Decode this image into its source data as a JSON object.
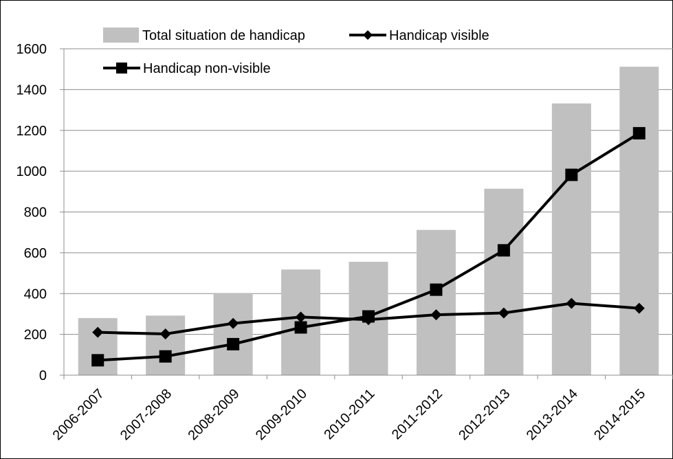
{
  "chart_data": {
    "type": "bar",
    "title": "",
    "xlabel": "",
    "ylabel": "",
    "ylim": [
      0,
      1600
    ],
    "yticks": [
      0,
      200,
      400,
      600,
      800,
      1000,
      1200,
      1400,
      1600
    ],
    "grid": true,
    "legend_position": "top",
    "categories": [
      "2006-2007",
      "2007-2008",
      "2008-2009",
      "2009-2010",
      "2010-2011",
      "2011-2012",
      "2012-2013",
      "2013-2014",
      "2014-2015"
    ],
    "series": [
      {
        "name": "Total situation de handicap",
        "kind": "bar",
        "color": "#c0c0c0",
        "values": [
          280,
          292,
          403,
          518,
          556,
          712,
          914,
          1332,
          1512
        ]
      },
      {
        "name": "Handicap visible",
        "kind": "line",
        "marker": "diamond",
        "color": "#000000",
        "values": [
          210,
          202,
          254,
          285,
          272,
          296,
          305,
          352,
          328
        ]
      },
      {
        "name": "Handicap non-visible",
        "kind": "line",
        "marker": "square",
        "color": "#000000",
        "values": [
          73,
          92,
          152,
          234,
          288,
          419,
          612,
          982,
          1186
        ]
      }
    ]
  }
}
